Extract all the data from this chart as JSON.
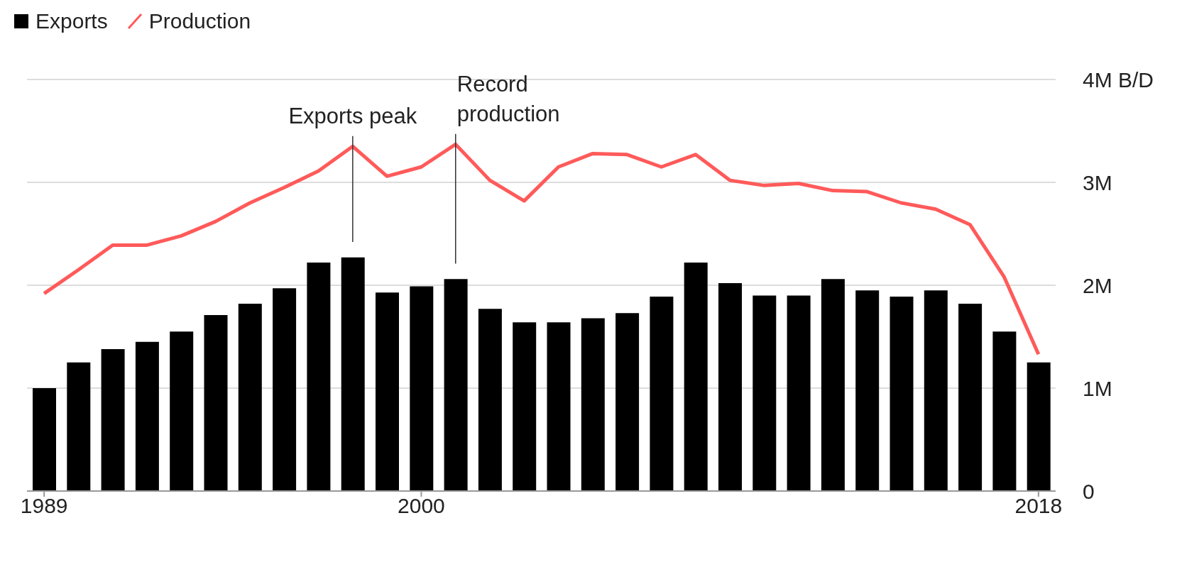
{
  "chart_data": {
    "type": "bar",
    "x": [
      1989,
      1990,
      1991,
      1992,
      1993,
      1994,
      1995,
      1996,
      1997,
      1998,
      1999,
      2000,
      2001,
      2002,
      2003,
      2004,
      2005,
      2006,
      2007,
      2008,
      2009,
      2010,
      2011,
      2012,
      2013,
      2014,
      2015,
      2016,
      2017,
      2018
    ],
    "series": [
      {
        "name": "Exports",
        "color": "#000000",
        "values": [
          1.0,
          1.25,
          1.38,
          1.45,
          1.55,
          1.71,
          1.82,
          1.97,
          2.22,
          2.27,
          1.93,
          1.99,
          2.06,
          1.77,
          1.64,
          1.64,
          1.68,
          1.73,
          1.89,
          2.22,
          2.02,
          1.9,
          1.9,
          2.06,
          1.95,
          1.89,
          1.95,
          1.82,
          1.55,
          1.25
        ]
      },
      {
        "name": "Production",
        "type": "line",
        "color": "#ff5a5a",
        "values": [
          1.92,
          2.15,
          2.39,
          2.39,
          2.48,
          2.62,
          2.8,
          2.95,
          3.11,
          3.35,
          3.06,
          3.15,
          3.37,
          3.02,
          2.82,
          3.15,
          3.28,
          3.27,
          3.15,
          3.27,
          3.02,
          2.97,
          2.99,
          2.92,
          2.91,
          2.8,
          2.74,
          2.59,
          2.08,
          1.33
        ]
      }
    ],
    "xlim": [
      1988.5,
      2018.5
    ],
    "xticks": [
      1989,
      2000,
      2018
    ],
    "ylim": [
      0,
      4
    ],
    "yticks": [
      0,
      {
        "value": 1,
        "label": "1M"
      },
      {
        "value": 2,
        "label": "2M"
      },
      {
        "value": 3,
        "label": "3M"
      },
      {
        "value": 4,
        "label": "4M B/D"
      }
    ],
    "grid": "y",
    "legend": "top left",
    "marker": "none",
    "line_style": "solid",
    "annotations": [
      {
        "text": "Exports peak",
        "x": 1998,
        "y": 3.35
      },
      {
        "text": "Record production",
        "x": 2001,
        "y": 3.37
      }
    ]
  }
}
